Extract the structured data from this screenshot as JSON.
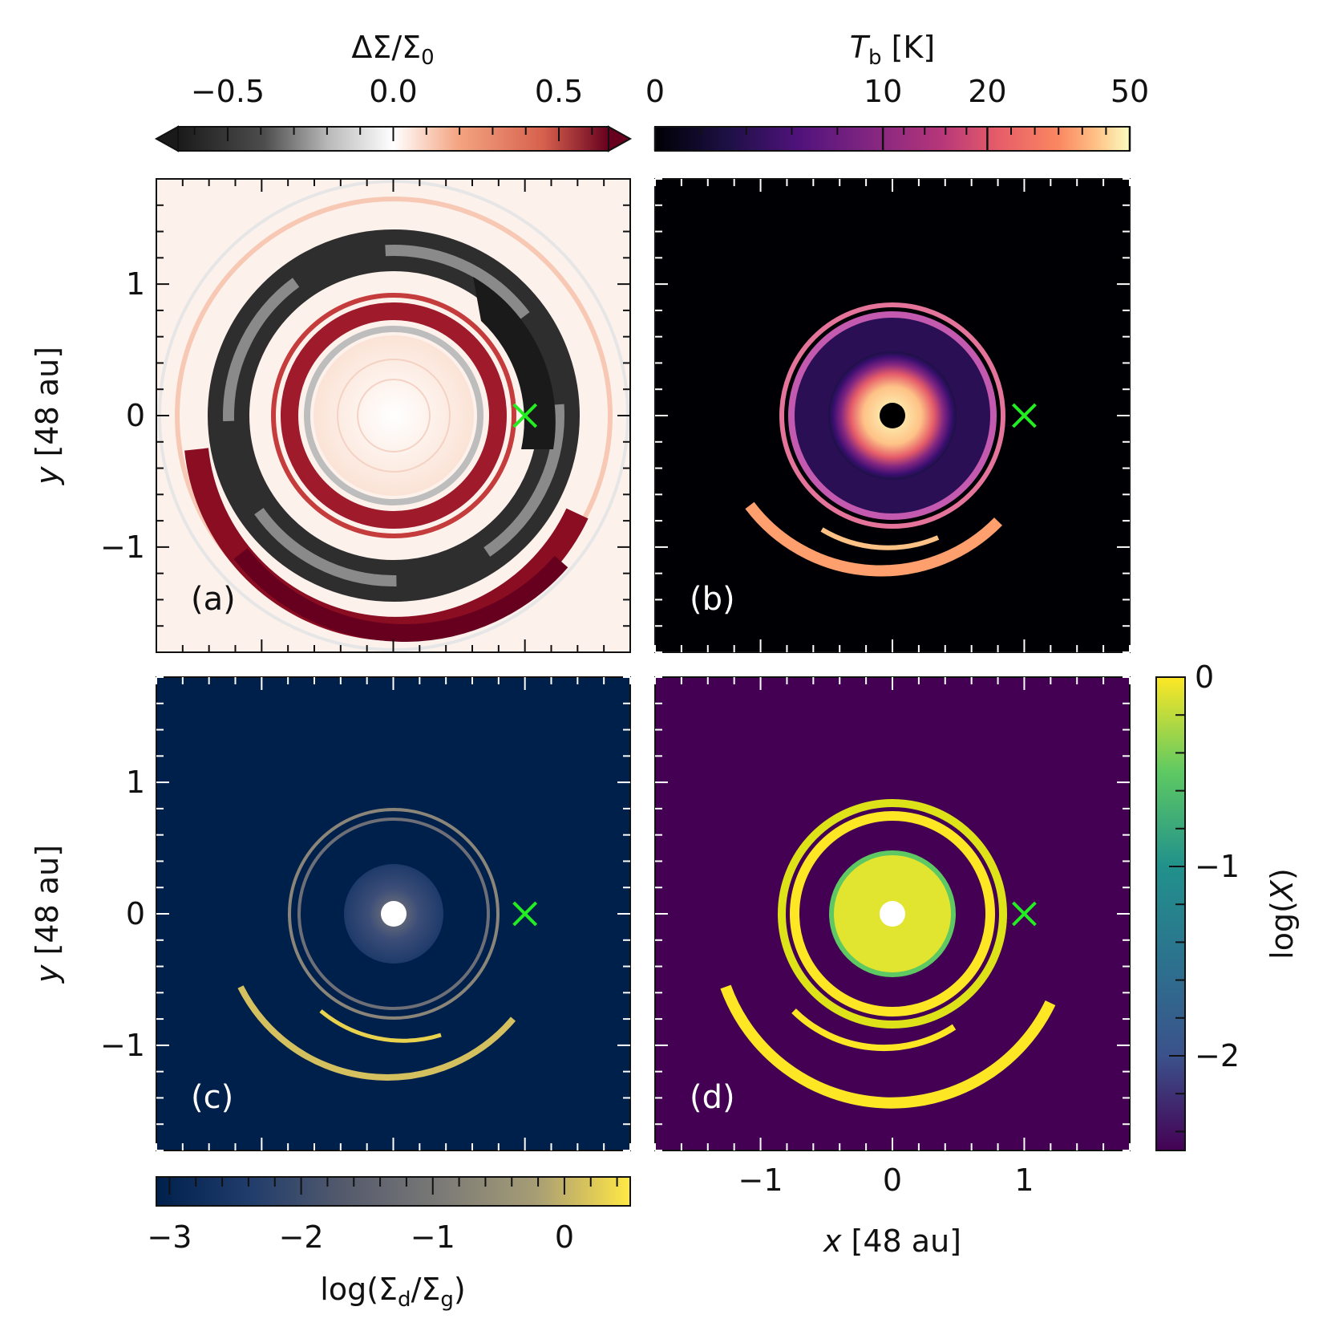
{
  "chart_data": [
    {
      "panel": "a",
      "type": "heatmap",
      "panel_label": "(a)",
      "quantity": "ΔΣ/Σ₀",
      "colormap": "RdGy_r (diverging)",
      "colorbar": {
        "label": "ΔΣ/Σ0",
        "ticks": [
          "−0.5",
          "0.0",
          "0.5"
        ],
        "tick_values": [
          -0.5,
          0.0,
          0.5
        ],
        "range": [
          -0.65,
          0.65
        ],
        "extend": "both",
        "placement": "top"
      },
      "ylabel": "y [48 au]",
      "ytick_labels": [
        "1",
        "0",
        "−1"
      ],
      "ytick_values": [
        1,
        0,
        -1
      ],
      "xlim": [
        -1.8,
        1.8
      ],
      "ylim": [
        -1.8,
        1.8
      ],
      "planet": {
        "x": 1.0,
        "y": 0.0,
        "marker": "x",
        "color": "#22ee22"
      }
    },
    {
      "panel": "b",
      "type": "heatmap",
      "panel_label": "(b)",
      "quantity": "T_b [K]",
      "colormap": "magma",
      "colorbar": {
        "label_main": "T",
        "label_sub": "b",
        "label_unit": " [K]",
        "ticks": [
          "0",
          "10",
          "20",
          "50"
        ],
        "tick_values": [
          0,
          10,
          20,
          50
        ],
        "placement": "top"
      },
      "xlim": [
        -1.8,
        1.8
      ],
      "ylim": [
        -1.8,
        1.8
      ],
      "planet": {
        "x": 1.0,
        "y": 0.0,
        "marker": "x",
        "color": "#22ee22"
      }
    },
    {
      "panel": "c",
      "type": "heatmap",
      "panel_label": "(c)",
      "quantity": "log(Σd/Σg)",
      "colormap": "cividis",
      "colorbar": {
        "label": "log(Σd/Σg)",
        "ticks": [
          "−3",
          "−2",
          "−1",
          "0"
        ],
        "tick_values": [
          -3,
          -2,
          -1,
          0
        ],
        "range": [
          -3.1,
          0.5
        ],
        "placement": "bottom"
      },
      "ylabel": "y [48 au]",
      "ytick_labels": [
        "1",
        "0",
        "−1"
      ],
      "ytick_values": [
        1,
        0,
        -1
      ],
      "xlim": [
        -1.8,
        1.8
      ],
      "ylim": [
        -1.8,
        1.8
      ],
      "planet": {
        "x": 1.0,
        "y": 0.0,
        "marker": "x",
        "color": "#22ee22"
      }
    },
    {
      "panel": "d",
      "type": "heatmap",
      "panel_label": "(d)",
      "quantity": "log(X)",
      "colormap": "viridis",
      "colorbar": {
        "label": "log(X)",
        "ticks": [
          "0",
          "−1",
          "−2"
        ],
        "tick_values": [
          0,
          -1,
          -2
        ],
        "range": [
          -2.5,
          0
        ],
        "placement": "right"
      },
      "xlabel": "x [48 au]",
      "xtick_labels": [
        "−1",
        "0",
        "1"
      ],
      "xtick_values": [
        -1,
        0,
        1
      ],
      "xlim": [
        -1.8,
        1.8
      ],
      "ylim": [
        -1.8,
        1.8
      ],
      "planet": {
        "x": 1.0,
        "y": 0.0,
        "marker": "x",
        "color": "#22ee22"
      }
    }
  ],
  "colors": {
    "green_marker": "#22ee22",
    "panel_c_bg": "#00204c",
    "panel_d_bg": "#440154",
    "panel_b_bg": "#000004",
    "ring_yellow": "#f5e026",
    "ring_dust": "#ffe945",
    "ring_magma": "#e55c69",
    "ring_magma_outer": "#fe9f6d"
  }
}
